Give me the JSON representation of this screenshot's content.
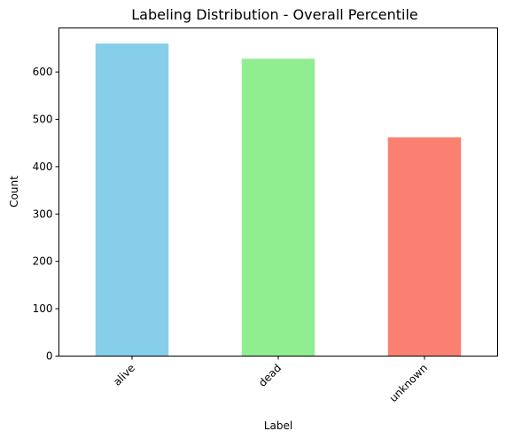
{
  "chart_data": {
    "type": "bar",
    "title": "Labeling Distribution - Overall Percentile",
    "xlabel": "Label",
    "ylabel": "Count",
    "categories": [
      "alive",
      "dead",
      "unknown"
    ],
    "values": [
      660,
      628,
      462
    ],
    "colors": [
      "#87ceeb",
      "#90ee90",
      "#fa8072"
    ],
    "ylim": [
      0,
      693
    ],
    "yticks": [
      0,
      100,
      200,
      300,
      400,
      500,
      600
    ],
    "xtick_rotation": 45,
    "grid": false,
    "legend": "none"
  }
}
